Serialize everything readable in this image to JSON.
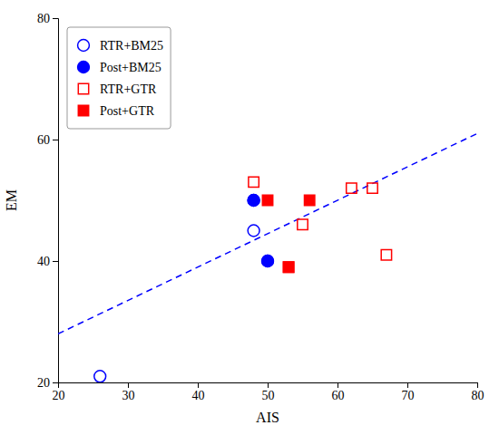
{
  "chart_data": {
    "type": "scatter",
    "xlabel": "AIS",
    "ylabel": "EM",
    "xlim": [
      20,
      80
    ],
    "ylim": [
      20,
      80
    ],
    "xticks": [
      20,
      30,
      40,
      50,
      60,
      70,
      80
    ],
    "yticks": [
      20,
      40,
      60,
      80
    ],
    "grid": false,
    "legend": "upper left",
    "series": [
      {
        "type": "line",
        "line_style": "dashed",
        "color": "#0000FF",
        "x": [
          20,
          80
        ],
        "values": [
          28,
          61
        ]
      },
      {
        "name": "RTR+BM25",
        "type": "scatter",
        "marker": "circle-open",
        "color": "#0000FF",
        "x": [
          26,
          48
        ],
        "values": [
          21,
          45
        ]
      },
      {
        "name": "Post+BM25",
        "type": "scatter",
        "marker": "circle",
        "color": "#0000FF",
        "x": [
          48,
          48,
          50,
          50
        ],
        "values": [
          50,
          50,
          40,
          40
        ]
      },
      {
        "name": "RTR+GTR",
        "type": "scatter",
        "marker": "square-open",
        "color": "#FF0000",
        "x": [
          48,
          55,
          62,
          65,
          53,
          67
        ],
        "values": [
          53,
          46,
          52,
          52,
          39,
          41
        ]
      },
      {
        "name": "Post+GTR",
        "type": "scatter",
        "marker": "square",
        "color": "#FF0000",
        "x": [
          50,
          56,
          53
        ],
        "values": [
          50,
          50,
          39
        ]
      }
    ]
  }
}
